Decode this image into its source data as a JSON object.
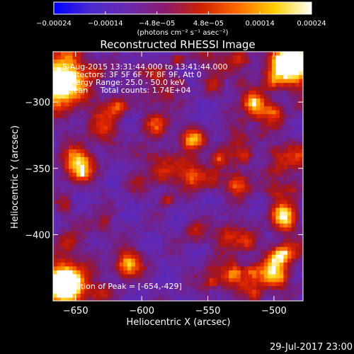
{
  "chart_data": {
    "type": "heatmap",
    "title": "Reconstructed RHESSI Image",
    "xlabel": "Heliocentric X (arcsec)",
    "ylabel": "Heliocentric Y (arcsec)",
    "xlim": [
      -667,
      -478
    ],
    "ylim": [
      -450,
      -262
    ],
    "x_ticks": [
      -650,
      -600,
      -550,
      -500
    ],
    "y_ticks": [
      -300,
      -350,
      -400
    ],
    "colorbar": {
      "range": [
        -0.00024,
        0.00024
      ],
      "tick_labels": [
        "-0.00024",
        "-0.00014",
        "-4.8e-05",
        "4.8e-05",
        "0.00014",
        "0.00024"
      ],
      "units_label": "(photons cm⁻² s⁻¹ asec⁻²)",
      "colors": [
        "#0000ff",
        "#4a2ad0",
        "#6a2ab0",
        "#8a1a70",
        "#cc2200",
        "#ff6a00",
        "#ffd000",
        "#ffffff"
      ]
    },
    "annotations": [
      "5-Aug-2015 13:31:44.000 to 13:41:44.000",
      "Detectors: 3F 5F 6F 7F 8F 9F, Att 0",
      "Energy Range: 25.0 - 50.0 keV",
      "Clean     Total counts: 1.74E+04",
      "Position of Peak = [-654,-429]"
    ],
    "peak": {
      "x": -654,
      "y": -429
    }
  },
  "footer_timestamp": "29-Jul-2017 23:00"
}
